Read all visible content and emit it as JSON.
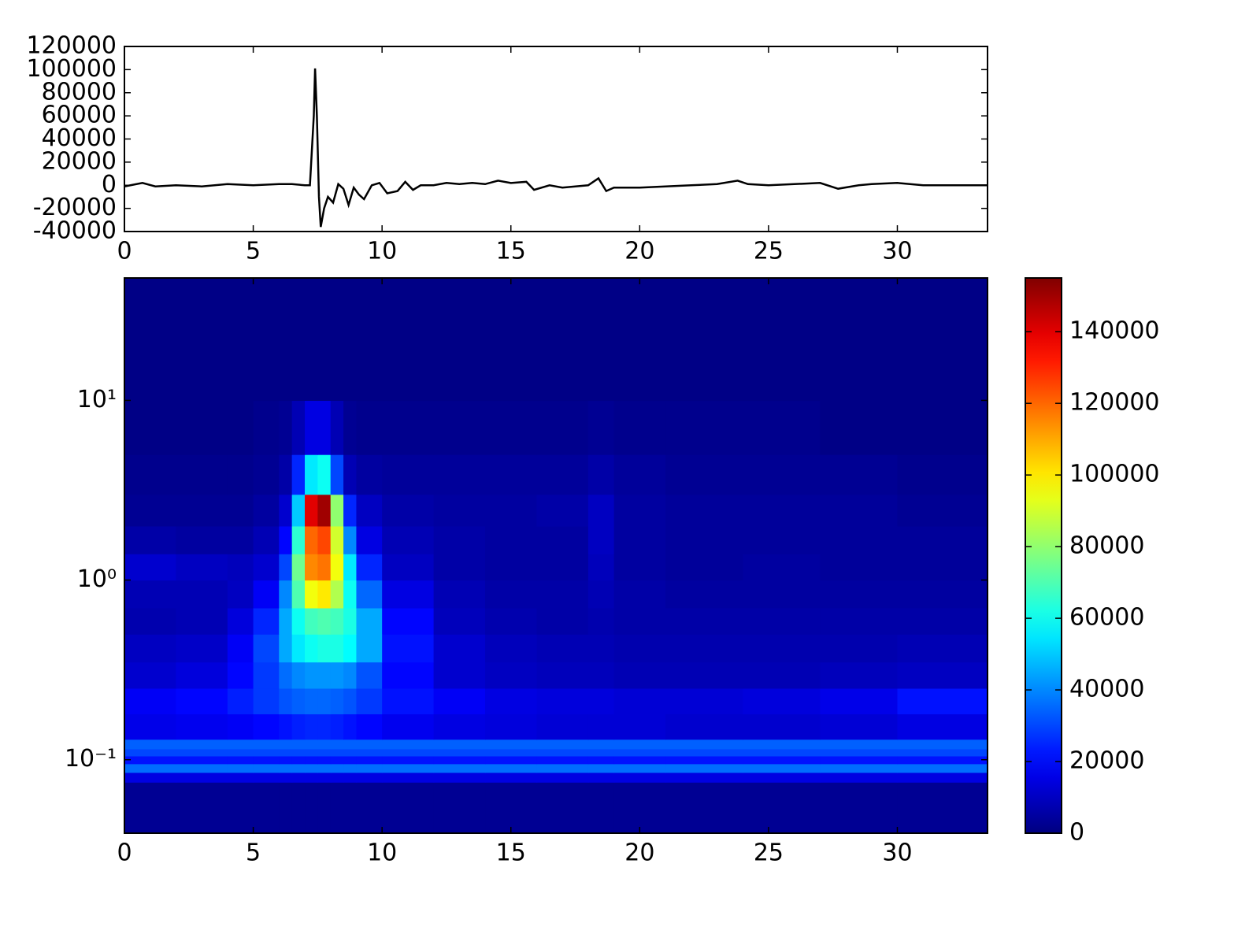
{
  "chart_data": [
    {
      "type": "line",
      "color": "#000000",
      "x": [
        0,
        0.7,
        1.2,
        2,
        3,
        4,
        5,
        6,
        6.5,
        7,
        7.2,
        7.35,
        7.4,
        7.47,
        7.55,
        7.62,
        7.75,
        7.9,
        8.1,
        8.3,
        8.5,
        8.7,
        8.9,
        9.1,
        9.3,
        9.6,
        9.9,
        10.2,
        10.6,
        10.9,
        11.2,
        11.5,
        12,
        12.5,
        13,
        13.5,
        14,
        14.5,
        15,
        15.6,
        15.9,
        16.5,
        17,
        18,
        18.4,
        18.7,
        19,
        20,
        21,
        22,
        23,
        23.8,
        24.2,
        25,
        26,
        27,
        27.7,
        28.5,
        29,
        30,
        31,
        32,
        33.5
      ],
      "y": [
        -1000,
        2000,
        -1000,
        0,
        -1000,
        1000,
        0,
        1000,
        1000,
        0,
        0,
        60000,
        101000,
        60000,
        -10000,
        -36000,
        -20000,
        -10000,
        -15000,
        1000,
        -3000,
        -17000,
        -2000,
        -8000,
        -12000,
        0,
        2000,
        -7000,
        -5000,
        3000,
        -4000,
        0,
        0,
        2000,
        1000,
        2000,
        1000,
        4000,
        2000,
        3000,
        -4000,
        0,
        -2000,
        0,
        6000,
        -5000,
        -2000,
        -2000,
        -1000,
        0,
        1000,
        4000,
        1000,
        0,
        1000,
        2000,
        -3000,
        0,
        1000,
        2000,
        0,
        0,
        0
      ],
      "xlim": [
        0,
        33.5
      ],
      "xticks": [
        0,
        5,
        10,
        15,
        20,
        25,
        30
      ],
      "ylim": [
        -40000,
        120000
      ],
      "yticks": [
        -40000,
        -20000,
        0,
        20000,
        40000,
        60000,
        80000,
        100000,
        120000
      ]
    },
    {
      "type": "heatmap",
      "colormap": "jet",
      "ylog": true,
      "x_edges": [
        0,
        2,
        4,
        5,
        6,
        6.5,
        7,
        7.5,
        8,
        8.5,
        9,
        10,
        12,
        14,
        16,
        18,
        19,
        21,
        24,
        27,
        30,
        33.5
      ],
      "y_edges": [
        0.039,
        0.075,
        0.085,
        0.095,
        0.105,
        0.115,
        0.13,
        0.18,
        0.25,
        0.35,
        0.5,
        0.7,
        1.0,
        1.4,
        2.0,
        3.0,
        5,
        10,
        48
      ],
      "xlim": [
        0,
        33.5
      ],
      "xticks": [
        0,
        5,
        10,
        15,
        20,
        25,
        30
      ],
      "ylim": [
        0.039,
        48
      ],
      "yticks": [
        {
          "value": 0.1,
          "label": "10⁻¹"
        },
        {
          "value": 1,
          "label": "10⁰"
        },
        {
          "value": 10,
          "label": "10¹"
        }
      ],
      "zlim": [
        0,
        155000
      ],
      "zticks": [
        0,
        20000,
        40000,
        60000,
        80000,
        100000,
        120000,
        140000
      ],
      "z": [
        [
          3000,
          3000,
          3000,
          3000,
          3000,
          3000,
          3000,
          3000,
          3000,
          3000,
          3000,
          3000,
          3000,
          3000,
          3000,
          3000,
          3000,
          3000,
          3000,
          3000,
          3000
        ],
        [
          15000,
          15000,
          15000,
          15000,
          15000,
          15000,
          15000,
          15000,
          15000,
          15000,
          15000,
          15000,
          15000,
          15000,
          15000,
          15000,
          15000,
          15000,
          15000,
          15000,
          15000
        ],
        [
          36000,
          36000,
          36000,
          36000,
          36000,
          36000,
          36000,
          36000,
          36000,
          36000,
          36000,
          36000,
          36000,
          36000,
          36000,
          36000,
          36000,
          36000,
          36000,
          36000,
          36000
        ],
        [
          22000,
          22000,
          22000,
          22000,
          22000,
          22000,
          22000,
          22000,
          22000,
          22000,
          22000,
          22000,
          22000,
          22000,
          22000,
          22000,
          22000,
          22000,
          22000,
          22000,
          22000
        ],
        [
          30000,
          30000,
          30000,
          30000,
          30000,
          30000,
          30000,
          30000,
          30000,
          30000,
          30000,
          30000,
          30000,
          30000,
          30000,
          30000,
          30000,
          30000,
          30000,
          30000,
          30000
        ],
        [
          34000,
          34000,
          34000,
          34000,
          34000,
          34000,
          34000,
          34000,
          34000,
          34000,
          34000,
          34000,
          34000,
          34000,
          34000,
          34000,
          34000,
          34000,
          34000,
          34000,
          34000
        ],
        [
          16000,
          17000,
          18000,
          20000,
          22000,
          24000,
          25000,
          25000,
          24000,
          22000,
          20000,
          17000,
          15000,
          14000,
          13000,
          13000,
          13000,
          12000,
          12000,
          13000,
          15000
        ],
        [
          18000,
          20000,
          24000,
          28000,
          32000,
          34000,
          35000,
          35000,
          34000,
          32000,
          28000,
          22000,
          18000,
          15000,
          14000,
          14000,
          13000,
          13000,
          14000,
          16000,
          22000
        ],
        [
          12000,
          14000,
          20000,
          28000,
          36000,
          40000,
          42000,
          42000,
          42000,
          40000,
          32000,
          20000,
          12000,
          10000,
          9000,
          9000,
          8000,
          8000,
          8000,
          9000,
          10000
        ],
        [
          10000,
          11000,
          18000,
          30000,
          45000,
          55000,
          60000,
          62000,
          62000,
          58000,
          45000,
          22000,
          12000,
          9000,
          8000,
          8000,
          7000,
          7000,
          7000,
          7000,
          8000
        ],
        [
          7000,
          8000,
          14000,
          25000,
          45000,
          60000,
          68000,
          70000,
          68000,
          62000,
          45000,
          20000,
          9000,
          7000,
          6000,
          7000,
          6000,
          6000,
          6000,
          6000,
          6000
        ],
        [
          8000,
          8000,
          10000,
          18000,
          40000,
          70000,
          95000,
          100000,
          85000,
          60000,
          35000,
          15000,
          8000,
          6000,
          6000,
          8000,
          6000,
          5000,
          5000,
          5000,
          5000
        ],
        [
          12000,
          10000,
          9000,
          12000,
          30000,
          75000,
          115000,
          118000,
          95000,
          55000,
          25000,
          10000,
          6000,
          5000,
          5000,
          9000,
          5000,
          4000,
          5000,
          4000,
          4000
        ],
        [
          6000,
          5000,
          5000,
          8000,
          20000,
          65000,
          120000,
          125000,
          90000,
          40000,
          15000,
          8000,
          6000,
          5000,
          5000,
          10000,
          5000,
          4000,
          4000,
          4000,
          4000
        ],
        [
          3000,
          3000,
          3000,
          5000,
          12000,
          50000,
          140000,
          150000,
          80000,
          25000,
          10000,
          6000,
          5000,
          5000,
          6000,
          10000,
          5000,
          4000,
          4000,
          4000,
          3000
        ],
        [
          2000,
          2000,
          2000,
          3000,
          6000,
          25000,
          55000,
          60000,
          30000,
          8000,
          5000,
          4000,
          4000,
          4000,
          4000,
          6000,
          4000,
          3000,
          3000,
          3000,
          2000
        ],
        [
          1000,
          1000,
          1000,
          2000,
          3000,
          8000,
          15000,
          15000,
          8000,
          3000,
          2000,
          2000,
          2000,
          2000,
          2000,
          3000,
          2000,
          2000,
          2000,
          1000,
          1000
        ],
        [
          1000,
          1000,
          1000,
          1000,
          1000,
          1000,
          1000,
          1000,
          1000,
          1000,
          1000,
          1000,
          1000,
          1000,
          1000,
          1000,
          1000,
          1000,
          1000,
          1000,
          1000
        ]
      ]
    }
  ]
}
